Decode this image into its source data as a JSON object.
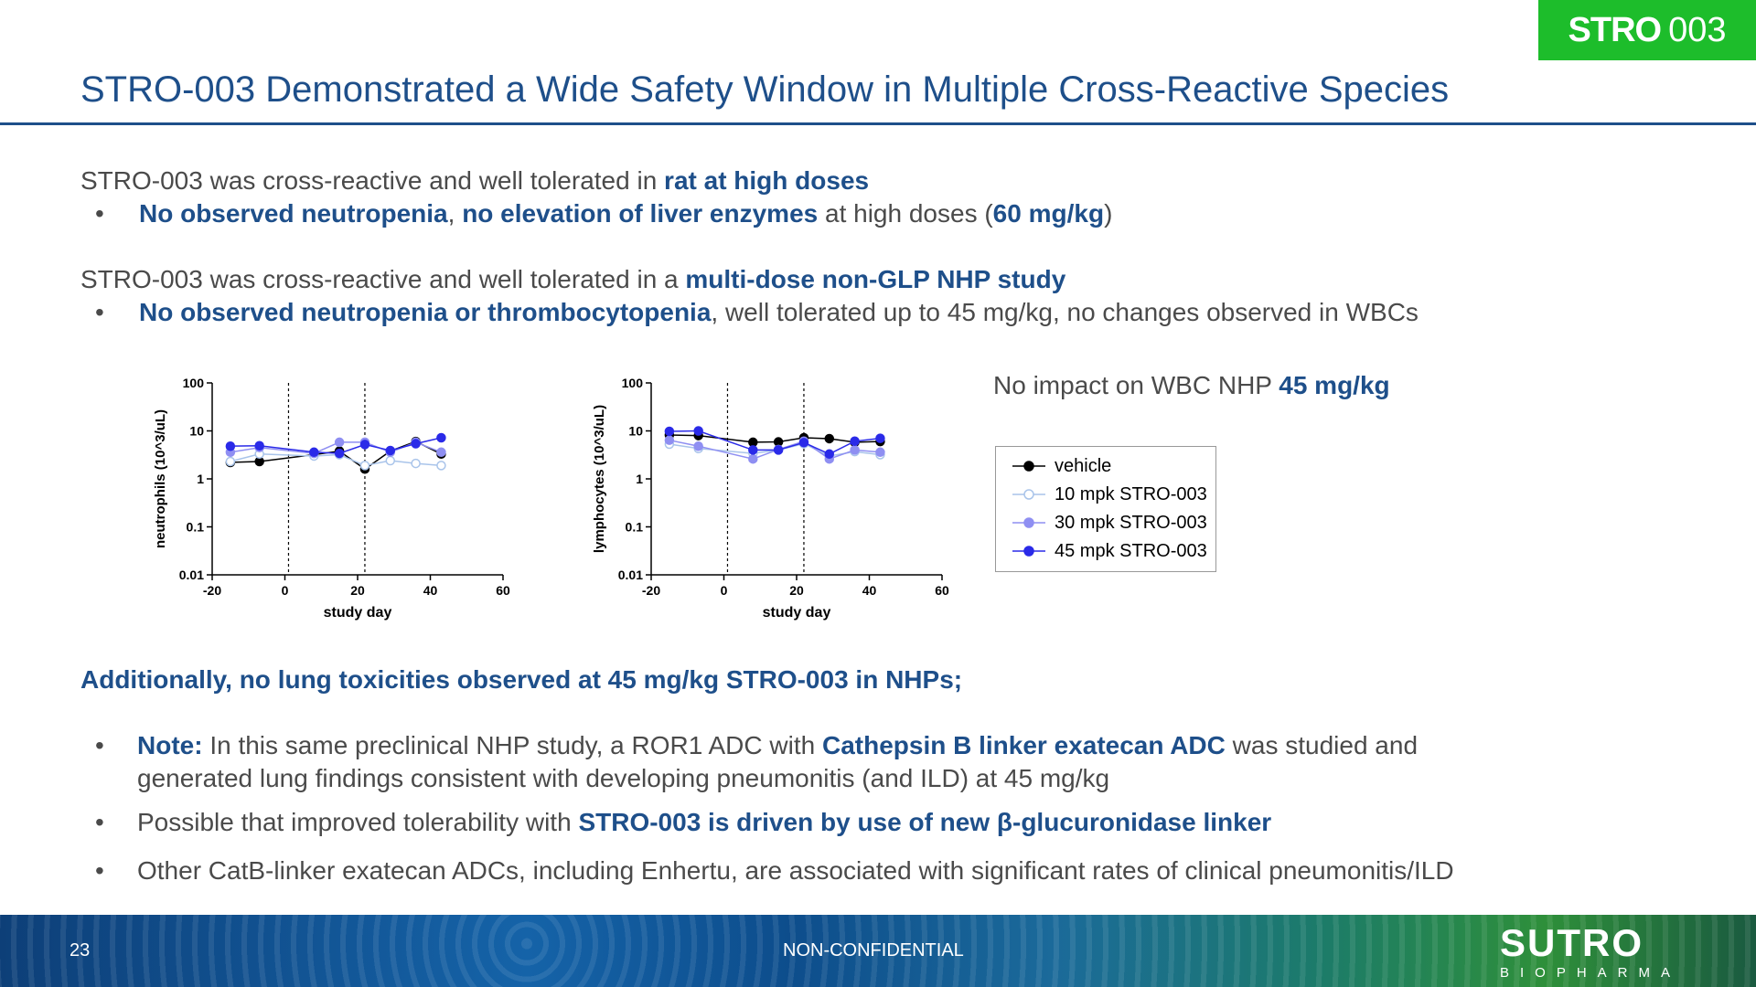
{
  "badge": {
    "brand": "STRO",
    "number": "003"
  },
  "title": "STRO-003 Demonstrated a Wide Safety Window in Multiple Cross-Reactive Species",
  "section1": {
    "lead_plain": "STRO-003 was cross-reactive and well tolerated in ",
    "lead_bold": "rat at high doses",
    "bullet_bold1": "No observed neutropenia",
    "bullet_sep": ", ",
    "bullet_bold2": "no elevation of liver enzymes",
    "bullet_plain": " at high doses (",
    "bullet_bold3": "60 mg/kg",
    "bullet_end": ")"
  },
  "section2": {
    "lead_plain": "STRO-003 was cross-reactive and well tolerated in a ",
    "lead_bold": "multi-dose non-GLP NHP study",
    "bullet_bold": "No observed neutropenia or thrombocytopenia",
    "bullet_plain": ", well tolerated up to 45 mg/kg, no changes observed in WBCs"
  },
  "wbc_note": {
    "plain": "No impact on WBC NHP ",
    "bold": "45 mg/kg"
  },
  "legend": {
    "items": [
      {
        "label": "vehicle",
        "color": "#000000",
        "filled": true
      },
      {
        "label": "10 mpk STRO-003",
        "color": "#a9c4ea",
        "filled": false
      },
      {
        "label": "30 mpk STRO-003",
        "color": "#8f8ff2",
        "filled": true
      },
      {
        "label": "45 mpk STRO-003",
        "color": "#2a2ae8",
        "filled": true
      }
    ]
  },
  "chart_data": [
    {
      "type": "line",
      "ylabel": "neutrophils (10^3/uL)",
      "xlabel": "study day",
      "xlim": [
        -20,
        60
      ],
      "xticks": [
        -20,
        0,
        20,
        40,
        60
      ],
      "ylim": [
        0.01,
        100
      ],
      "yscale": "log",
      "yticks": [
        100,
        10,
        1,
        0.1,
        0.01
      ],
      "ytick_labels": [
        "100",
        "10",
        "1",
        "0.1",
        "0.01"
      ],
      "vlines": [
        1,
        22
      ],
      "series": [
        {
          "name": "vehicle",
          "x": [
            -15,
            -7,
            8,
            15,
            22,
            29,
            36,
            43
          ],
          "y": [
            2.2,
            2.3,
            3.2,
            3.8,
            1.6,
            3.8,
            6.0,
            3.3
          ]
        },
        {
          "name": "10 mpk STRO-003",
          "x": [
            -15,
            -7,
            8,
            15,
            22,
            29,
            36,
            43
          ],
          "y": [
            2.3,
            3.3,
            3.0,
            3.2,
            1.9,
            2.4,
            2.1,
            1.9
          ]
        },
        {
          "name": "30 mpk STRO-003",
          "x": [
            -15,
            -7,
            8,
            15,
            22,
            29,
            36,
            43
          ],
          "y": [
            3.6,
            4.5,
            3.4,
            5.8,
            5.8,
            3.6,
            5.8,
            3.6
          ]
        },
        {
          "name": "45 mpk STRO-003",
          "x": [
            -15,
            -7,
            8,
            15,
            22,
            29,
            36,
            43
          ],
          "y": [
            4.8,
            4.9,
            3.6,
            3.4,
            5.2,
            3.9,
            5.4,
            7.2
          ]
        }
      ]
    },
    {
      "type": "line",
      "ylabel": "lymphocytes (10^3/uL)",
      "xlabel": "study day",
      "xlim": [
        -20,
        60
      ],
      "xticks": [
        -20,
        0,
        20,
        40,
        60
      ],
      "ylim": [
        0.01,
        100
      ],
      "yscale": "log",
      "yticks": [
        100,
        10,
        1,
        0.1,
        0.01
      ],
      "ytick_labels": [
        "100",
        "10",
        "1",
        "0.1",
        "0.01"
      ],
      "vlines": [
        1,
        22
      ],
      "series": [
        {
          "name": "vehicle",
          "x": [
            -15,
            -7,
            8,
            15,
            22,
            29,
            36,
            43
          ],
          "y": [
            8.2,
            8.0,
            5.8,
            5.9,
            7.2,
            6.9,
            5.8,
            6.0
          ]
        },
        {
          "name": "10 mpk STRO-003",
          "x": [
            -15,
            -7,
            8,
            15,
            22,
            29,
            36,
            43
          ],
          "y": [
            5.3,
            4.3,
            3.4,
            4.0,
            5.4,
            3.0,
            3.7,
            3.2
          ]
        },
        {
          "name": "30 mpk STRO-003",
          "x": [
            -15,
            -7,
            8,
            15,
            22,
            29,
            36,
            43
          ],
          "y": [
            6.4,
            4.8,
            2.6,
            4.1,
            6.1,
            2.6,
            4.0,
            3.6
          ]
        },
        {
          "name": "45 mpk STRO-003",
          "x": [
            -15,
            -7,
            8,
            15,
            22,
            29,
            36,
            43
          ],
          "y": [
            9.8,
            10.0,
            4.0,
            4.0,
            5.7,
            3.3,
            6.1,
            7.0
          ]
        }
      ]
    }
  ],
  "lung": {
    "heading": "Additionally, no lung toxicities observed at 45 mg/kg STRO-003 in NHPs;",
    "b1_bold1": "Note:",
    "b1_plain1": " In this same preclinical NHP study, a ROR1 ADC with ",
    "b1_bold2": "Cathepsin B linker exatecan ADC",
    "b1_plain2": " was studied and",
    "b1_line2": "generated lung findings consistent with developing pneumonitis (and ILD) at 45 mg/kg",
    "b2_plain": "Possible that improved tolerability with ",
    "b2_bold": "STRO-003 is driven by use of new β-glucuronidase linker",
    "b3_plain": "Other CatB-linker exatecan ADCs, including Enhertu, are associated with significant rates of clinical pneumonitis/ILD"
  },
  "footer": {
    "page": "23",
    "confidentiality": "NON-CONFIDENTIAL",
    "logo_main": "SUTRO",
    "logo_sub": "BIOPHARMA"
  }
}
